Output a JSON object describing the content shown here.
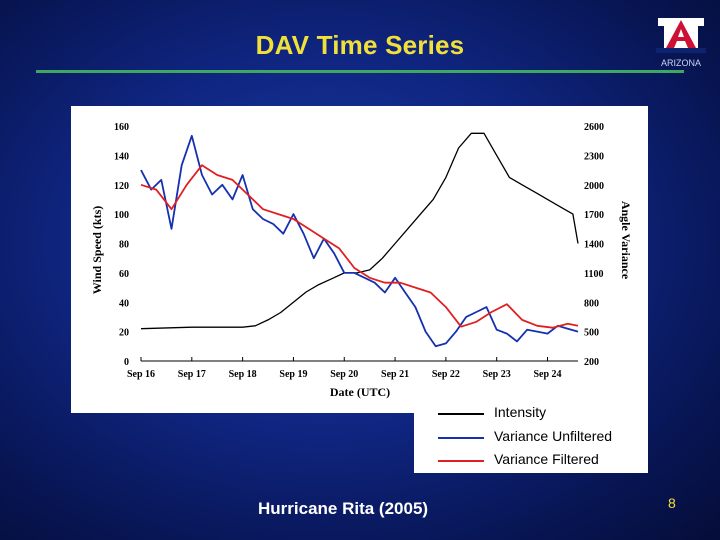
{
  "slide": {
    "title": "DAV Time Series",
    "subtitle": "Hurricane Rita (2005)",
    "page_number": "8",
    "logo_text": "ARIZONA",
    "colors": {
      "title": "#f2e03a",
      "rule": "#3fa860",
      "background": "#0f2580"
    }
  },
  "legend": {
    "intensity": "Intensity",
    "unfiltered": "Variance Unfiltered",
    "filtered": "Variance Filtered"
  },
  "chart_data": {
    "type": "line",
    "xlabel": "Date (UTC)",
    "ylabel": "Wind Speed (kts)",
    "y2label": "Angle Variance",
    "x_ticks": [
      "Sep 16",
      "Sep 17",
      "Sep 18",
      "Sep 19",
      "Sep 20",
      "Sep 21",
      "Sep 22",
      "Sep 23",
      "Sep 24"
    ],
    "xlim": [
      16.0,
      24.6
    ],
    "ylim": [
      0,
      160
    ],
    "y_ticks": [
      0,
      20,
      40,
      60,
      80,
      100,
      120,
      140,
      160
    ],
    "y2lim": [
      200,
      2600
    ],
    "y2_ticks": [
      200,
      500,
      800,
      1100,
      1400,
      1700,
      2000,
      2300,
      2600
    ],
    "series": [
      {
        "name": "Intensity",
        "axis": "left",
        "color": "#000000",
        "x": [
          16.0,
          17.0,
          18.0,
          18.25,
          18.5,
          18.75,
          19.0,
          19.25,
          19.5,
          19.75,
          20.0,
          20.25,
          20.5,
          20.75,
          21.0,
          21.25,
          21.5,
          21.75,
          22.0,
          22.25,
          22.5,
          22.75,
          23.0,
          23.25,
          23.5,
          23.75,
          24.0,
          24.25,
          24.5,
          24.6
        ],
        "values": [
          22,
          23,
          23,
          24,
          28,
          33,
          40,
          47,
          52,
          56,
          60,
          60,
          62,
          70,
          80,
          90,
          100,
          110,
          125,
          145,
          155,
          155,
          140,
          125,
          120,
          115,
          110,
          105,
          100,
          80
        ]
      },
      {
        "name": "Variance Unfiltered",
        "axis": "right",
        "color": "#1530b0",
        "x": [
          16.0,
          16.2,
          16.4,
          16.6,
          16.8,
          17.0,
          17.2,
          17.4,
          17.6,
          17.8,
          18.0,
          18.2,
          18.4,
          18.6,
          18.8,
          19.0,
          19.2,
          19.4,
          19.6,
          19.8,
          20.0,
          20.2,
          20.4,
          20.6,
          20.8,
          21.0,
          21.2,
          21.4,
          21.6,
          21.8,
          22.0,
          22.2,
          22.4,
          22.6,
          22.8,
          23.0,
          23.2,
          23.4,
          23.6,
          23.8,
          24.0,
          24.2,
          24.4,
          24.6
        ],
        "values": [
          2150,
          1950,
          2050,
          1550,
          2200,
          2500,
          2100,
          1900,
          2000,
          1850,
          2100,
          1750,
          1650,
          1600,
          1500,
          1700,
          1500,
          1250,
          1450,
          1300,
          1100,
          1100,
          1050,
          1000,
          900,
          1050,
          900,
          750,
          500,
          350,
          380,
          500,
          650,
          700,
          750,
          520,
          480,
          400,
          520,
          500,
          480,
          560,
          530,
          500
        ]
      },
      {
        "name": "Variance Filtered",
        "axis": "right",
        "color": "#e02020",
        "x": [
          16.0,
          16.3,
          16.6,
          16.9,
          17.2,
          17.5,
          17.8,
          18.1,
          18.4,
          18.7,
          19.0,
          19.3,
          19.6,
          19.9,
          20.2,
          20.5,
          20.8,
          21.1,
          21.4,
          21.7,
          22.0,
          22.3,
          22.6,
          22.9,
          23.2,
          23.5,
          23.8,
          24.1,
          24.4,
          24.6
        ],
        "values": [
          2000,
          1950,
          1750,
          2000,
          2200,
          2100,
          2050,
          1900,
          1750,
          1700,
          1650,
          1550,
          1450,
          1350,
          1150,
          1050,
          1000,
          1000,
          950,
          900,
          750,
          550,
          600,
          700,
          780,
          620,
          560,
          540,
          580,
          560
        ]
      }
    ]
  }
}
